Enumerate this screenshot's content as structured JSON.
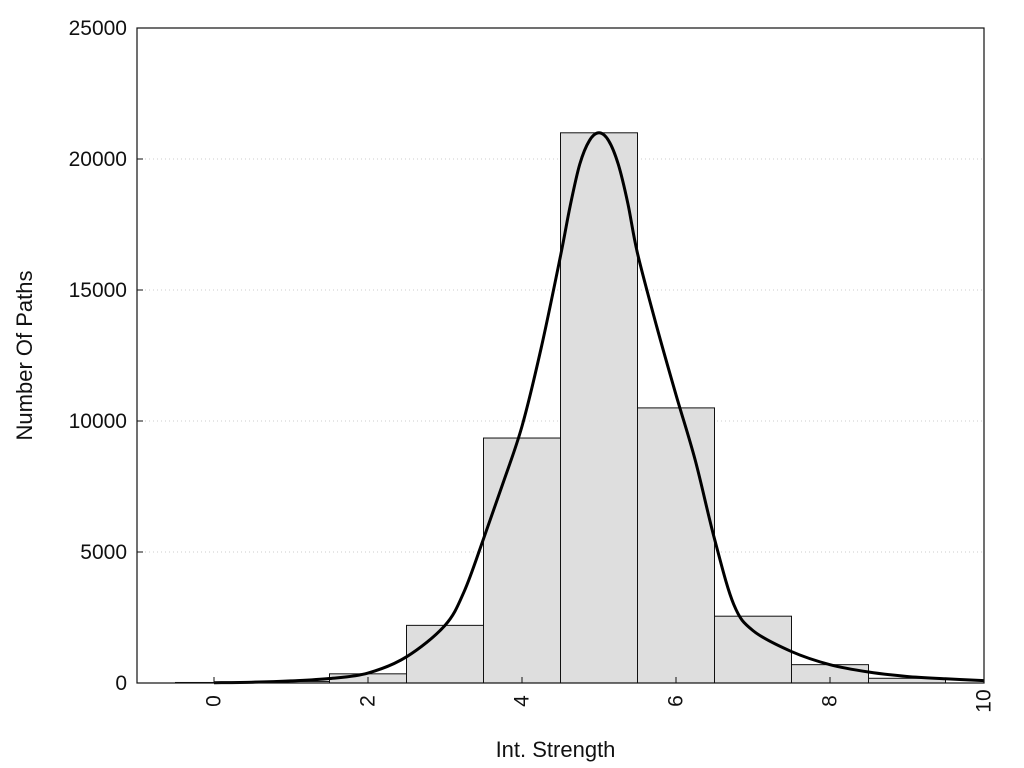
{
  "chart_data": {
    "type": "bar",
    "title": "",
    "xlabel": "Int. Strength",
    "ylabel": "Number Of Paths",
    "xlim": [
      -1,
      10
    ],
    "ylim": [
      0,
      25000
    ],
    "xticks": [
      0,
      2,
      4,
      6,
      8,
      10
    ],
    "yticks": [
      0,
      5000,
      10000,
      15000,
      20000,
      25000
    ],
    "grid": "horizontal dotted",
    "bars": {
      "bin_width": 1,
      "centers": [
        0,
        1,
        2,
        3,
        4,
        5,
        6,
        7,
        8,
        9
      ],
      "values": [
        20,
        60,
        350,
        2200,
        9350,
        21000,
        10500,
        2550,
        700,
        180
      ]
    },
    "curve": {
      "x": [
        0,
        0.5,
        1,
        1.5,
        2,
        2.5,
        3,
        3.25,
        3.5,
        3.75,
        4,
        4.25,
        4.5,
        4.625,
        4.75,
        4.875,
        5,
        5.125,
        5.25,
        5.375,
        5.5,
        5.75,
        6,
        6.25,
        6.5,
        6.75,
        7,
        7.5,
        8,
        8.5,
        9,
        9.5,
        10
      ],
      "y": [
        10,
        30,
        80,
        170,
        380,
        1000,
        2200,
        3500,
        5500,
        7600,
        9800,
        12800,
        16300,
        18200,
        19800,
        20700,
        21000,
        20700,
        19800,
        18300,
        16400,
        13600,
        11000,
        8500,
        5500,
        3000,
        2000,
        1200,
        700,
        420,
        250,
        160,
        90
      ]
    },
    "colors": {
      "bar_fill": "#dedede",
      "bar_stroke": "#111111",
      "curve": "#000000",
      "grid": "#cccccc"
    }
  }
}
